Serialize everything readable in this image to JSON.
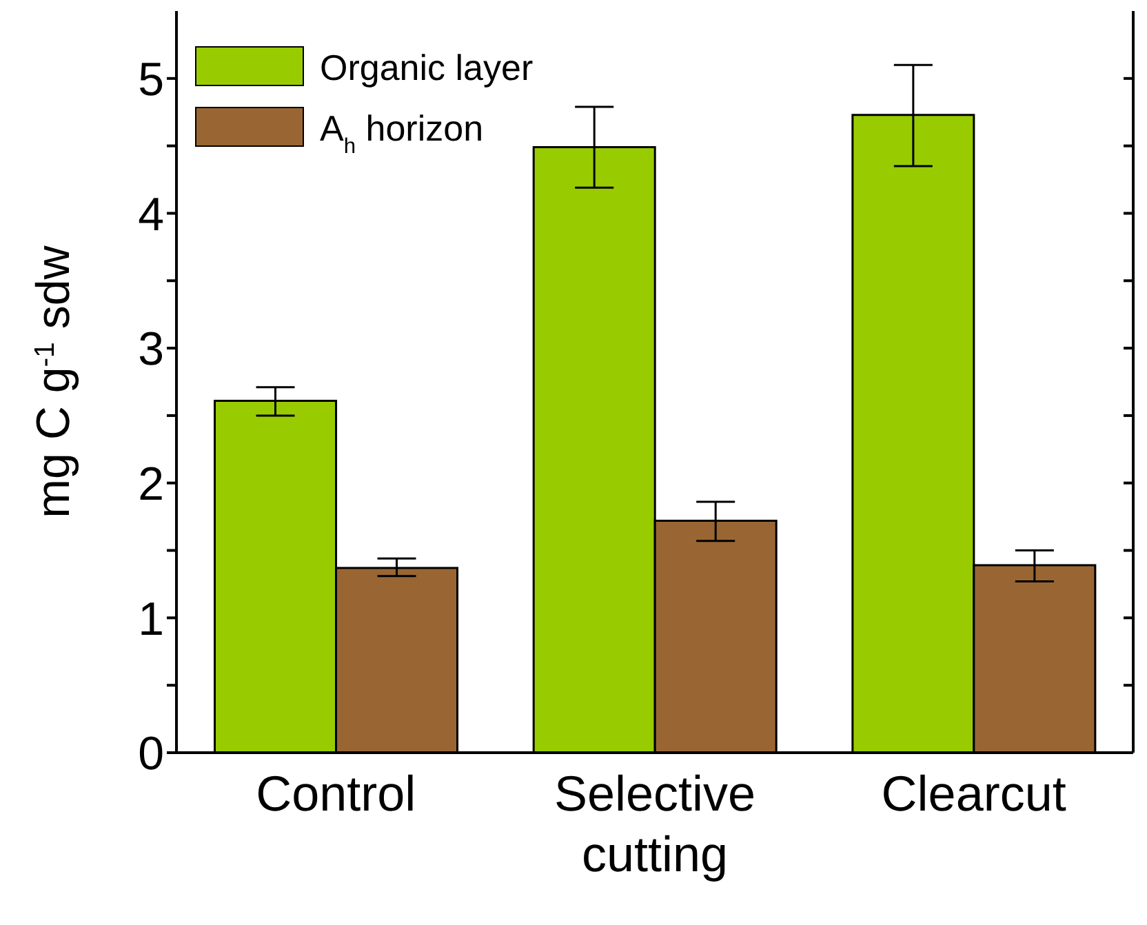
{
  "chart_data": {
    "type": "bar",
    "ylabel": "mg C g$^{-1}$ sdw",
    "categories": [
      "Control",
      "Selective cutting",
      "Clearcut"
    ],
    "series": [
      {
        "name": "Organic layer",
        "color": "#99cc00",
        "values": [
          2.61,
          4.49,
          4.73
        ],
        "errors": [
          [
            2.5,
            2.71
          ],
          [
            4.19,
            4.79
          ],
          [
            4.35,
            5.1
          ]
        ]
      },
      {
        "name": "A$_{h}$ horizon",
        "color": "#996633",
        "values": [
          1.37,
          1.72,
          1.39
        ],
        "errors": [
          [
            1.31,
            1.44
          ],
          [
            1.57,
            1.86
          ],
          [
            1.27,
            1.5
          ]
        ]
      }
    ],
    "ylim": [
      0,
      5.5
    ],
    "yticks": [
      0,
      {
        "value": 0.5,
        "label": null
      },
      1,
      {
        "value": 1.5,
        "label": null
      },
      2,
      {
        "value": 2.5,
        "label": null
      },
      3,
      {
        "value": 3.5,
        "label": null
      },
      4,
      {
        "value": 4.5,
        "label": null
      },
      5
    ],
    "legend": "top left",
    "grid": false
  }
}
